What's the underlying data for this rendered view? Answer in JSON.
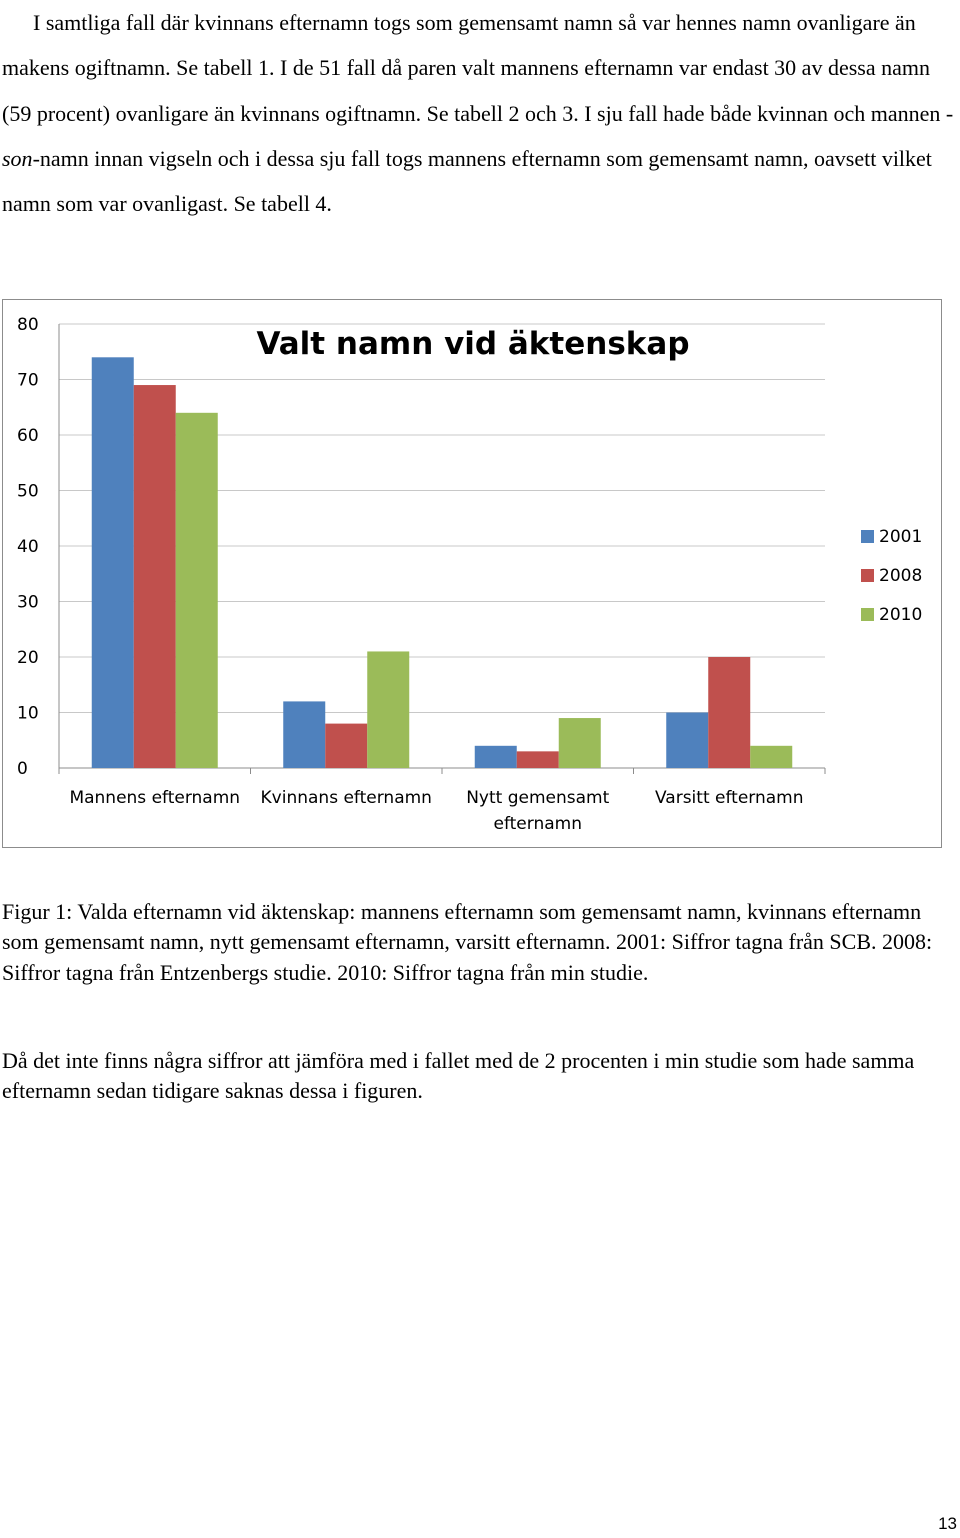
{
  "text": {
    "p1_a": "I samtliga fall där kvinnans efternamn togs som gemensamt namn så var hennes namn ovanligare än makens ogiftnamn. Se tabell 1. I de 51 fall då paren valt mannens efternamn var endast 30 av dessa namn (59 procent) ovanligare än kvinnans ogiftnamn. Se tabell 2 och 3. I sju fall hade både kvinnan och mannen -",
    "p1_em": "son",
    "p1_b": "-namn innan vigseln och i dessa sju fall togs mannens efternamn som gemensamt namn, oavsett vilket namn som var ovanligast. Se tabell 4.",
    "caption": "Figur 1: Valda efternamn vid äktenskap: mannens efternamn som gemensamt namn, kvinnans efternamn som gemensamt namn, nytt gemensamt efternamn, varsitt efternamn. 2001: Siffror tagna från SCB. 2008: Siffror tagna från Entzenbergs studie. 2010: Siffror tagna från min studie.",
    "p3": "Då det inte finns några siffror att jämföra med i fallet med de 2 procenten i min studie som hade samma efternamn sedan tidigare saknas dessa i figuren.",
    "page_number": "13"
  },
  "chart_data": {
    "type": "bar",
    "title": "Valt namn vid äktenskap",
    "categories": [
      [
        "Mannens efternamn"
      ],
      [
        "Kvinnans efternamn"
      ],
      [
        "Nytt gemensamt",
        "efternamn"
      ],
      [
        "Varsitt efternamn"
      ]
    ],
    "series": [
      {
        "name": "2001",
        "color": "#4f81bd",
        "values": [
          74,
          12,
          4,
          10
        ]
      },
      {
        "name": "2008",
        "color": "#c0504d",
        "values": [
          69,
          8,
          3,
          20
        ]
      },
      {
        "name": "2010",
        "color": "#9bbb59",
        "values": [
          64,
          21,
          9,
          4
        ]
      }
    ],
    "yticks": [
      0,
      10,
      20,
      30,
      40,
      50,
      60,
      70,
      80
    ],
    "ylim": [
      0,
      80
    ],
    "grid": true,
    "legend": "right"
  }
}
